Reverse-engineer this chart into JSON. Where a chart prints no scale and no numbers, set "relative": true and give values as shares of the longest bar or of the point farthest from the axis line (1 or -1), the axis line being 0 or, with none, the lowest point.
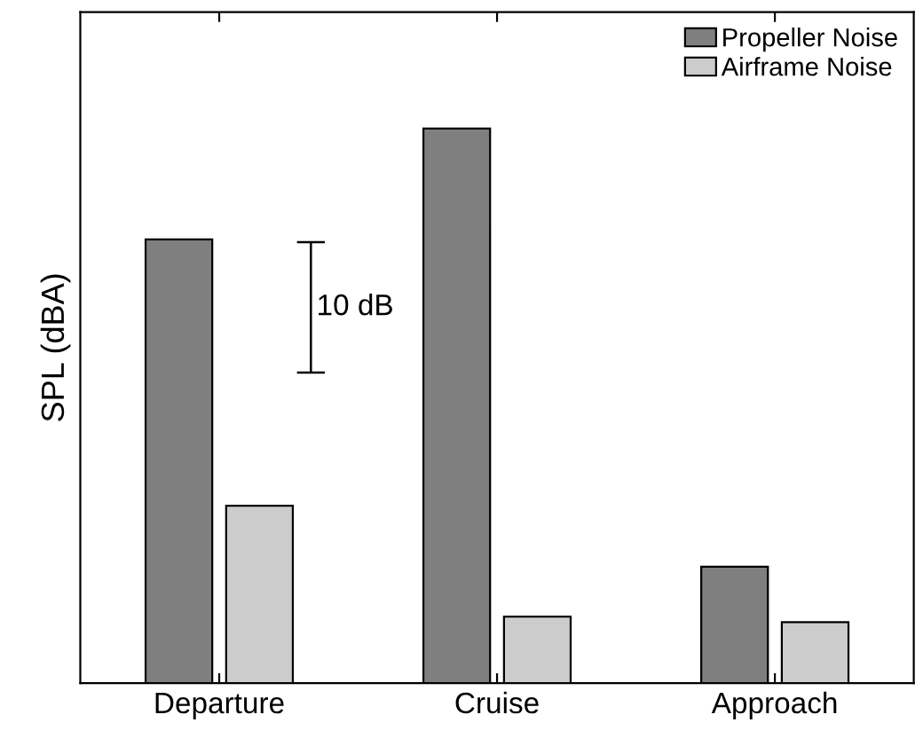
{
  "chart_data": {
    "type": "bar",
    "relative": true,
    "ylabel": "SPL (dBA)",
    "categories": [
      "Departure",
      "Cruise",
      "Approach"
    ],
    "series": [
      {
        "name": "Propeller Noise",
        "color": "#7f7f7f",
        "values": [
          0.8,
          1,
          0.21
        ]
      },
      {
        "name": "Airframe Noise",
        "color": "#cccccc",
        "values": [
          0.32,
          0.12,
          0.11
        ]
      }
    ],
    "legend": "top right",
    "grid": false,
    "annotations": [
      "10 dB"
    ]
  }
}
